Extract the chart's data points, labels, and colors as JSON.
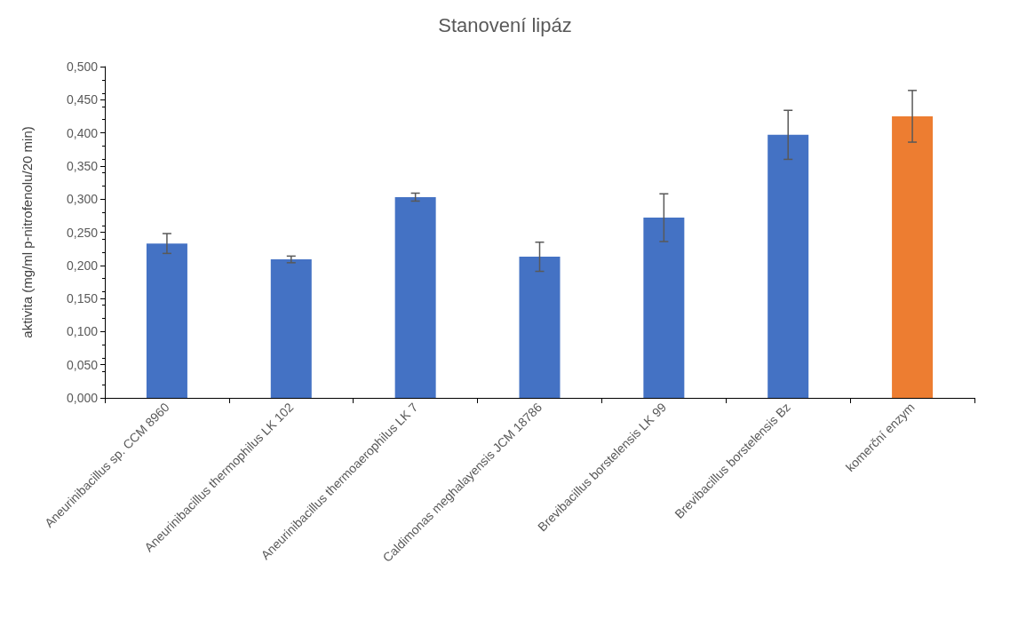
{
  "chart_data": {
    "type": "bar",
    "title": "Stanovení lipáz",
    "ylabel": "aktivita (mg/ml p-nitrofenolu/20 min)",
    "categories": [
      "Aneurinibacillus sp. CCM 8960",
      "Aneurinibacillus thermophilus LK 102",
      "Aneurinibacillus thermoaerophilus LK 7",
      "Caldimonas meghalayensis JCM 18786",
      "Brevibacillus borstelensis LK 99",
      "Brevibacillus borstelensis Bz",
      "komerční enzym"
    ],
    "values": [
      0.233,
      0.209,
      0.303,
      0.213,
      0.272,
      0.397,
      0.425
    ],
    "errors": [
      0.015,
      0.005,
      0.006,
      0.022,
      0.036,
      0.037,
      0.039
    ],
    "colors": [
      "#4472c4",
      "#4472c4",
      "#4472c4",
      "#4472c4",
      "#4472c4",
      "#4472c4",
      "#ed7d31"
    ],
    "ylim": [
      0,
      0.5
    ],
    "yticks": [
      {
        "value": 0,
        "label": "0,000"
      },
      {
        "value": 0.05,
        "label": "0,050"
      },
      {
        "value": 0.1,
        "label": "0,100"
      },
      {
        "value": 0.15,
        "label": "0,150"
      },
      {
        "value": 0.2,
        "label": "0,200"
      },
      {
        "value": 0.25,
        "label": "0,250"
      },
      {
        "value": 0.3,
        "label": "0,300"
      },
      {
        "value": 0.35,
        "label": "0,350"
      },
      {
        "value": 0.4,
        "label": "0,400"
      },
      {
        "value": 0.45,
        "label": "0,450"
      },
      {
        "value": 0.5,
        "label": "0,500"
      }
    ],
    "grid": false
  }
}
